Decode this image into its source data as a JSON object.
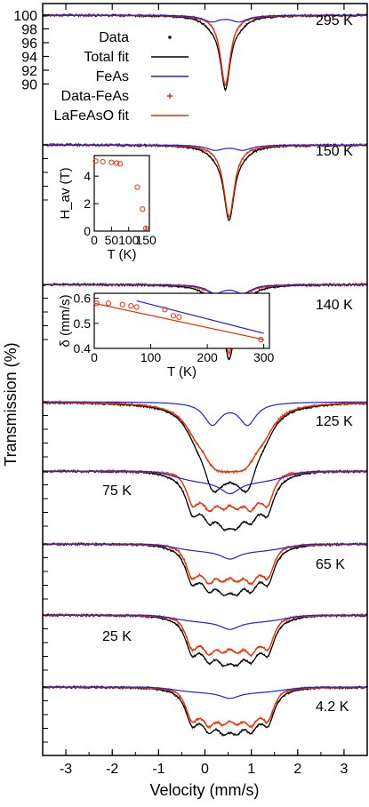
{
  "chart_data": {
    "type": "line",
    "xlabel": "Velocity (mm/s)",
    "ylabel": "Transmission (%)",
    "xlim": [
      -3.5,
      3.5
    ],
    "x_ticks": [
      -3,
      -2,
      -1,
      0,
      1,
      2,
      3
    ],
    "y_ticks_top_panel": [
      90,
      92,
      94,
      96,
      98,
      100
    ],
    "legend": {
      "placement": "top-left of top panel",
      "entries": [
        {
          "name": "Data",
          "style": "black-dots"
        },
        {
          "name": "Total fit",
          "style": "black-line"
        },
        {
          "name": "FeAs",
          "style": "blue-line"
        },
        {
          "name": "Data-FeAs",
          "style": "red-plus"
        },
        {
          "name": "LaFeAsO fit",
          "style": "red-line"
        }
      ]
    },
    "panels": [
      {
        "temperature": "295 K",
        "depth": 10.2,
        "feas_depth": 1.5,
        "mode": "singlet",
        "center": 0.44,
        "width": 0.13
      },
      {
        "temperature": "150 K",
        "depth": 10.5,
        "feas_depth": 1.2,
        "mode": "singlet",
        "center": 0.52,
        "width": 0.14
      },
      {
        "temperature": "140 K",
        "depth": 10.0,
        "feas_depth": 2.0,
        "mode": "singlet",
        "center": 0.52,
        "width": 0.15
      },
      {
        "temperature": "125 K",
        "depth": 6.8,
        "feas_depth": 3.2,
        "mode": "broad",
        "center": 0.54,
        "split": 1.3,
        "width": 0.3
      },
      {
        "temperature": "75 K",
        "depth": 6.5,
        "feas_depth": 3.0,
        "mode": "sextet",
        "center": 0.54,
        "split": 1.62
      },
      {
        "temperature": "65 K",
        "depth": 6.5,
        "feas_depth": 2.0,
        "mode": "sextet",
        "center": 0.54,
        "split": 1.65
      },
      {
        "temperature": "25 K",
        "depth": 6.5,
        "feas_depth": 1.9,
        "mode": "sextet",
        "center": 0.54,
        "split": 1.65
      },
      {
        "temperature": "4.2 K",
        "depth": 6.5,
        "feas_depth": 1.5,
        "mode": "sextet",
        "center": 0.54,
        "split": 1.65
      }
    ],
    "inset_hyperfine": {
      "xlabel": "T (K)",
      "ylabel": "H_av (T)",
      "xlim": [
        0,
        160
      ],
      "ylim": [
        0,
        5.5
      ],
      "x_ticks": [
        0,
        50,
        100,
        150
      ],
      "y_ticks": [
        0,
        2,
        4
      ],
      "points": [
        [
          4.2,
          5.1
        ],
        [
          25,
          5.05
        ],
        [
          50,
          5.0
        ],
        [
          65,
          4.95
        ],
        [
          75,
          4.9
        ],
        [
          125,
          3.2
        ],
        [
          140,
          1.6
        ],
        [
          150,
          0.2
        ]
      ]
    },
    "inset_isomer": {
      "xlabel": "T (K)",
      "ylabel": "δ (mm/s)",
      "xlim": [
        0,
        310
      ],
      "ylim": [
        0.4,
        0.62
      ],
      "x_ticks": [
        0,
        100,
        200,
        300
      ],
      "y_ticks": [
        0.4,
        0.5,
        0.6
      ],
      "points": [
        [
          4.2,
          0.58
        ],
        [
          25,
          0.58
        ],
        [
          50,
          0.575
        ],
        [
          65,
          0.57
        ],
        [
          75,
          0.565
        ],
        [
          125,
          0.555
        ],
        [
          140,
          0.53
        ],
        [
          150,
          0.525
        ],
        [
          295,
          0.435
        ]
      ],
      "fit_red": [
        [
          0,
          0.58
        ],
        [
          300,
          0.435
        ]
      ],
      "fit_blue": [
        [
          75,
          0.59
        ],
        [
          300,
          0.46
        ]
      ]
    },
    "colors": {
      "data": "#000000",
      "total_fit": "#000000",
      "feas": "#1f1fe0",
      "diff": "#ee3000",
      "lafeaso_fit": "#ee3000"
    }
  }
}
